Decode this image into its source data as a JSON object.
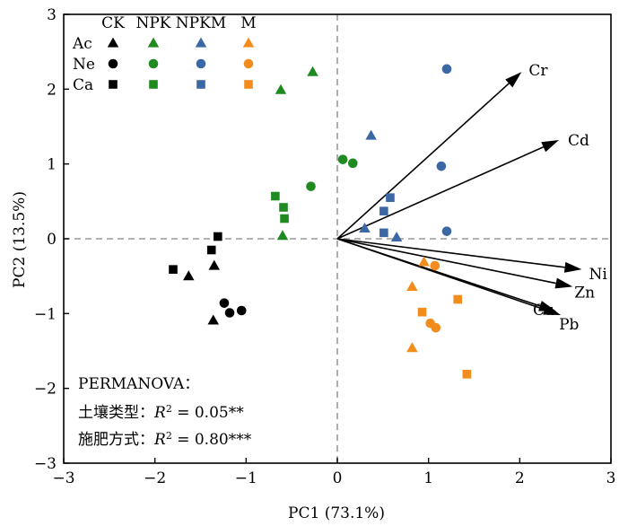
{
  "chart_data": {
    "type": "scatter",
    "title": "",
    "xlabel": "PC1 (73.1%)",
    "ylabel": "PC2 (13.5%)",
    "xlim": [
      -3,
      3
    ],
    "ylim": [
      -3,
      3
    ],
    "xticks": [
      "−3",
      "−2",
      "−1",
      "0",
      "1",
      "2",
      "3"
    ],
    "yticks": [
      "−3",
      "−2",
      "−1",
      "0",
      "1",
      "2",
      "3"
    ],
    "reference_lines": {
      "x": 0,
      "y": 0,
      "style": "dashed",
      "color": "#999999"
    },
    "legend": {
      "placement": "top-left",
      "columns": [
        "CK",
        "NPK",
        "NPKM",
        "M"
      ],
      "rows": [
        {
          "label": "Ac",
          "shape": "triangle"
        },
        {
          "label": "Ne",
          "shape": "circle"
        },
        {
          "label": "Ca",
          "shape": "square"
        }
      ]
    },
    "colors": {
      "CK": "#000000",
      "NPK": "#1f8a1f",
      "NPKM": "#3a68a5",
      "M": "#f28c1c"
    },
    "series": [
      {
        "treatment": "CK",
        "soil": "Ac",
        "shape": "triangle",
        "points": [
          [
            -1.63,
            -0.5
          ],
          [
            -1.35,
            -0.36
          ],
          [
            -1.36,
            -1.09
          ]
        ]
      },
      {
        "treatment": "CK",
        "soil": "Ne",
        "shape": "circle",
        "points": [
          [
            -1.24,
            -0.86
          ],
          [
            -1.18,
            -0.99
          ],
          [
            -1.05,
            -0.96
          ]
        ]
      },
      {
        "treatment": "CK",
        "soil": "Ca",
        "shape": "square",
        "points": [
          [
            -1.8,
            -0.41
          ],
          [
            -1.38,
            -0.15
          ],
          [
            -1.31,
            0.03
          ]
        ]
      },
      {
        "treatment": "NPK",
        "soil": "Ac",
        "shape": "triangle",
        "points": [
          [
            -0.62,
            1.99
          ],
          [
            -0.27,
            2.23
          ],
          [
            -0.6,
            0.04
          ]
        ]
      },
      {
        "treatment": "NPK",
        "soil": "Ne",
        "shape": "circle",
        "points": [
          [
            -0.29,
            0.7
          ],
          [
            0.06,
            1.06
          ],
          [
            0.17,
            1.01
          ]
        ]
      },
      {
        "treatment": "NPK",
        "soil": "Ca",
        "shape": "square",
        "points": [
          [
            -0.68,
            0.57
          ],
          [
            -0.59,
            0.42
          ],
          [
            -0.58,
            0.27
          ]
        ]
      },
      {
        "treatment": "NPKM",
        "soil": "Ac",
        "shape": "triangle",
        "points": [
          [
            0.37,
            1.38
          ],
          [
            0.3,
            0.14
          ],
          [
            0.65,
            0.02
          ]
        ]
      },
      {
        "treatment": "NPKM",
        "soil": "Ne",
        "shape": "circle",
        "points": [
          [
            1.2,
            2.27
          ],
          [
            1.14,
            0.97
          ],
          [
            1.2,
            0.1
          ]
        ]
      },
      {
        "treatment": "NPKM",
        "soil": "Ca",
        "shape": "square",
        "points": [
          [
            0.58,
            0.55
          ],
          [
            0.51,
            0.37
          ],
          [
            0.51,
            0.08
          ]
        ]
      },
      {
        "treatment": "M",
        "soil": "Ac",
        "shape": "triangle",
        "points": [
          [
            0.95,
            -0.31
          ],
          [
            0.82,
            -0.64
          ],
          [
            0.82,
            -1.46
          ]
        ]
      },
      {
        "treatment": "M",
        "soil": "Ne",
        "shape": "circle",
        "points": [
          [
            1.07,
            -0.36
          ],
          [
            1.02,
            -1.13
          ],
          [
            1.08,
            -1.19
          ]
        ]
      },
      {
        "treatment": "M",
        "soil": "Ca",
        "shape": "square",
        "points": [
          [
            0.93,
            -0.98
          ],
          [
            1.32,
            -0.81
          ],
          [
            1.42,
            -1.81
          ]
        ]
      }
    ],
    "loadings": [
      {
        "name": "Cr",
        "x": 2.02,
        "y": 2.23
      },
      {
        "name": "Cd",
        "x": 2.43,
        "y": 1.32
      },
      {
        "name": "Ni",
        "x": 2.68,
        "y": -0.41
      },
      {
        "name": "Zn",
        "x": 2.58,
        "y": -0.64
      },
      {
        "name": "Cu",
        "x": 2.4,
        "y": -0.97
      },
      {
        "name": "Pb",
        "x": 2.45,
        "y": -1.02
      }
    ],
    "annotations": [
      "PERMANOVA：",
      {
        "prefix": "土壤类型：",
        "stat": "R",
        "sup": "2",
        "value": " = 0.05**"
      },
      {
        "prefix": "施肥方式：",
        "stat": "R",
        "sup": "2",
        "value": " = 0.80***"
      }
    ]
  }
}
